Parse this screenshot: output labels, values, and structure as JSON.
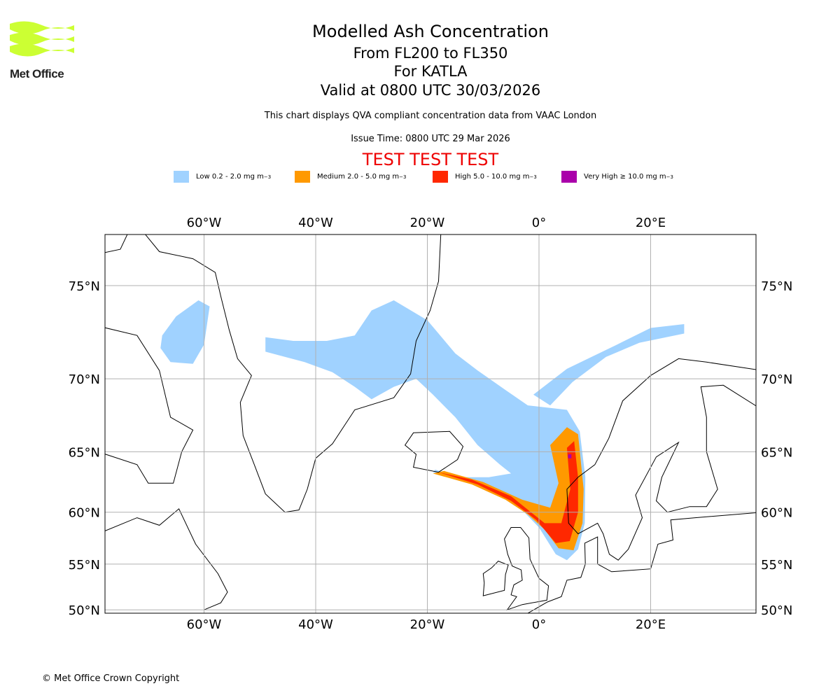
{
  "logo": {
    "text": "Met Office",
    "color": "#ccff33"
  },
  "header": {
    "title": "Modelled Ash Concentration",
    "levels": "From FL200 to FL350",
    "volcano": "For KATLA",
    "valid": "Valid at 0800 UTC 30/03/2026",
    "description": "This chart displays QVA compliant concentration data from VAAC London",
    "issue_time": "Issue Time: 0800 UTC 29 Mar 2026",
    "test_banner": "TEST TEST TEST"
  },
  "legend": [
    {
      "label": "Low 0.2 - 2.0 mg m",
      "sup": "−3",
      "color": "#a0d2ff"
    },
    {
      "label": "Medium 2.0 - 5.0 mg m",
      "sup": "−3",
      "color": "#ff9900"
    },
    {
      "label": "High 5.0 - 10.0 mg m",
      "sup": "−3",
      "color": "#ff2800"
    },
    {
      "label": "Very High  ≥  10.0 mg m",
      "sup": "−3",
      "color": "#aa00aa"
    }
  ],
  "map": {
    "lon_labels": [
      "60°W",
      "40°W",
      "20°W",
      "0°",
      "20°E"
    ],
    "lat_labels": [
      "75°N",
      "70°N",
      "65°N",
      "60°N",
      "55°N",
      "50°N"
    ]
  },
  "footer": {
    "copyright": "© Met Office Crown Copyright"
  }
}
